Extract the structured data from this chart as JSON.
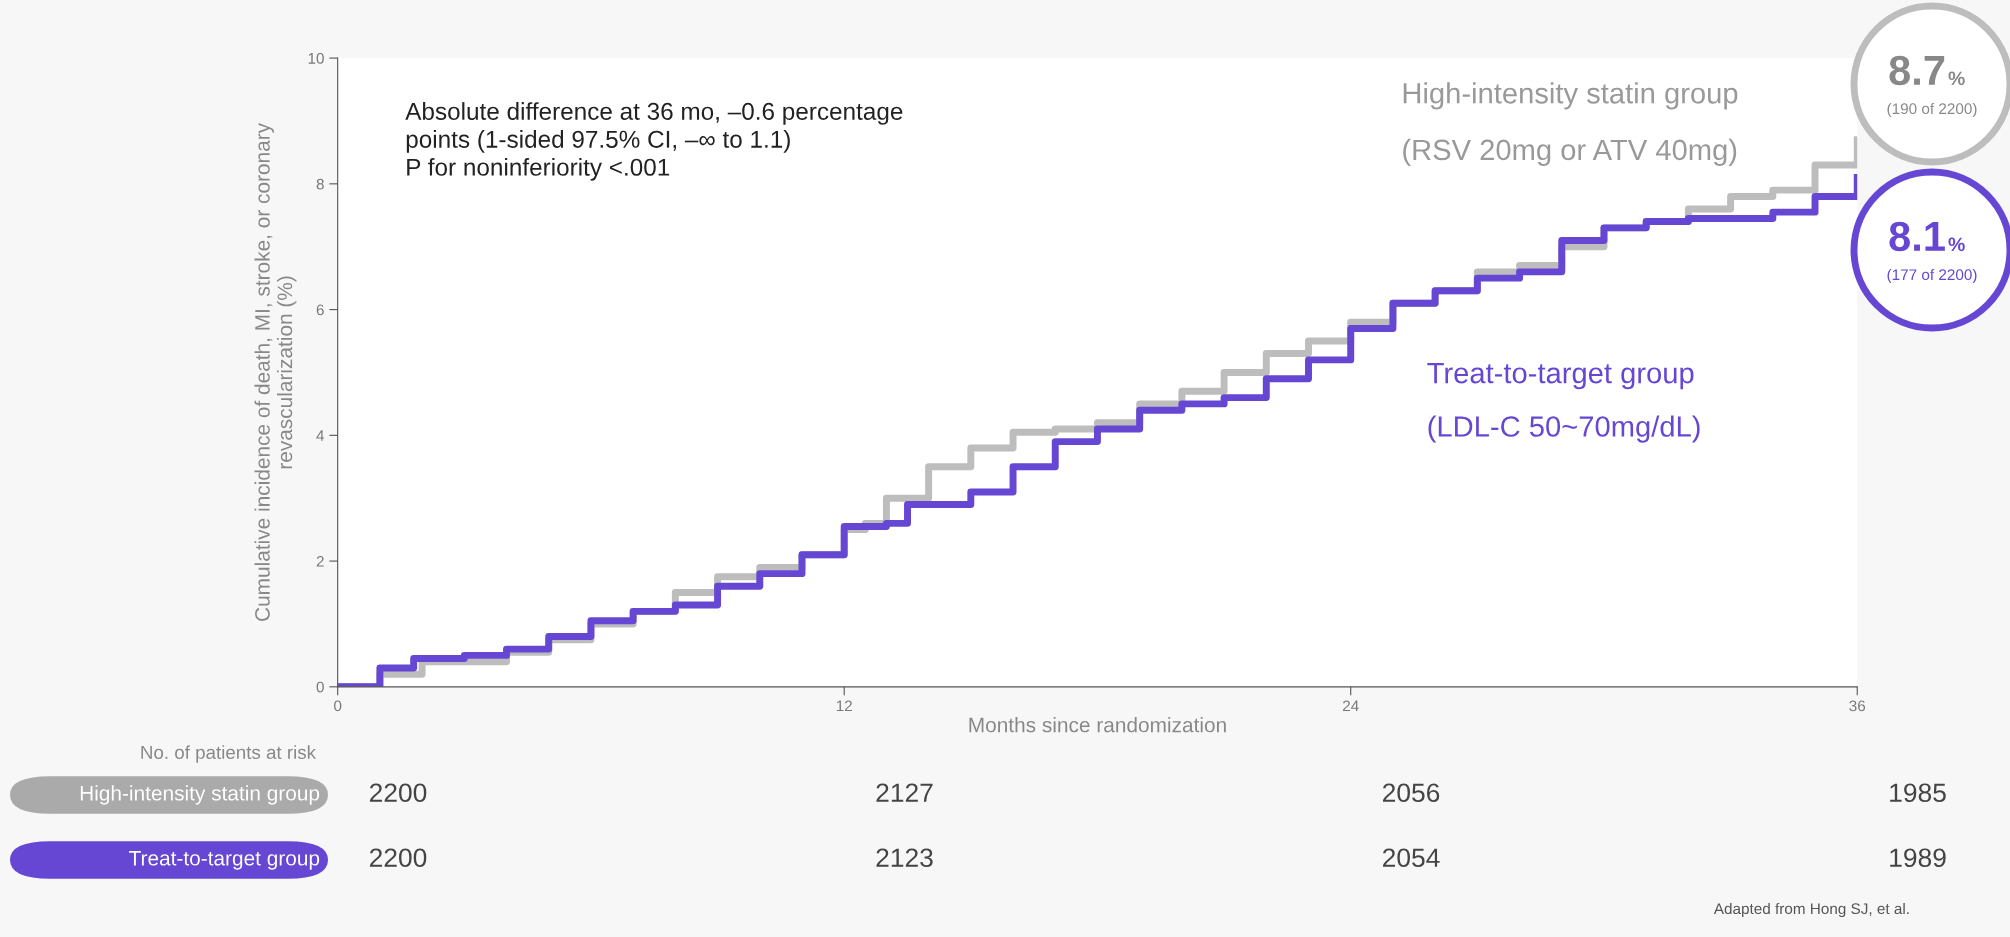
{
  "chart_data": {
    "type": "step",
    "xlabel": "Months since randomization",
    "ylabel": "Cumulative incidence of death, MI, stroke, or coronary\nrevascularization (%)",
    "xlim": [
      0,
      36
    ],
    "xticks": [
      0,
      12,
      24,
      36
    ],
    "ylim": [
      0,
      10
    ],
    "yticks": [
      0,
      2,
      4,
      6,
      8,
      10
    ],
    "grid": false,
    "legend": false,
    "series": [
      {
        "name": "High-intensity statin group",
        "color": "#bdbdbd",
        "x": [
          0,
          1,
          2,
          3,
          4,
          5,
          6,
          7,
          8,
          9,
          10,
          11,
          12,
          12.5,
          13,
          14,
          15,
          16,
          17,
          18,
          19,
          20,
          21,
          22,
          23,
          24,
          25,
          26,
          27,
          28,
          29,
          30,
          31,
          32,
          33,
          34,
          35,
          36
        ],
        "values": [
          0,
          0.2,
          0.4,
          0.4,
          0.55,
          0.75,
          1.0,
          1.2,
          1.5,
          1.75,
          1.9,
          2.1,
          2.5,
          2.6,
          3.0,
          3.5,
          3.8,
          4.05,
          4.1,
          4.2,
          4.5,
          4.7,
          5.0,
          5.3,
          5.5,
          5.8,
          6.1,
          6.3,
          6.6,
          6.7,
          7.0,
          7.3,
          7.4,
          7.6,
          7.8,
          7.9,
          8.3,
          8.7
        ]
      },
      {
        "name": "Treat-to-target group",
        "color": "#6647d4",
        "x": [
          0,
          1,
          1.8,
          3,
          4,
          5,
          6,
          7,
          8,
          9,
          10,
          11,
          12,
          13,
          13.5,
          14,
          15,
          16,
          17,
          18,
          19,
          20,
          21,
          22,
          23,
          24,
          25,
          26,
          27,
          28,
          29,
          30,
          31,
          32,
          33,
          34,
          35,
          36
        ],
        "values": [
          0,
          0.3,
          0.45,
          0.5,
          0.6,
          0.8,
          1.05,
          1.2,
          1.3,
          1.6,
          1.8,
          2.1,
          2.55,
          2.6,
          2.9,
          2.9,
          3.1,
          3.5,
          3.9,
          4.1,
          4.4,
          4.5,
          4.6,
          4.9,
          5.2,
          5.7,
          6.1,
          6.3,
          6.5,
          6.6,
          7.1,
          7.3,
          7.4,
          7.45,
          7.45,
          7.55,
          7.8,
          8.1
        ]
      }
    ],
    "annotations": [
      "Absolute difference at 36 mo, –0.6 percentage\npoints (1-sided 97.5% CI, –∞ to 1.1)\nP for noninferiority <.001",
      "(RSV 20mg or ATV 40mg)",
      "(LDL-C 50~70mg/dL)",
      "8.7%",
      "(190 of 2200)",
      "8.1%",
      "(177 of 2200)",
      "No. of patients at risk",
      "2200",
      "2127",
      "2056",
      "1985",
      "2200",
      "2123",
      "2054",
      "1989",
      "Adapted from Hong SJ, et al."
    ]
  }
}
